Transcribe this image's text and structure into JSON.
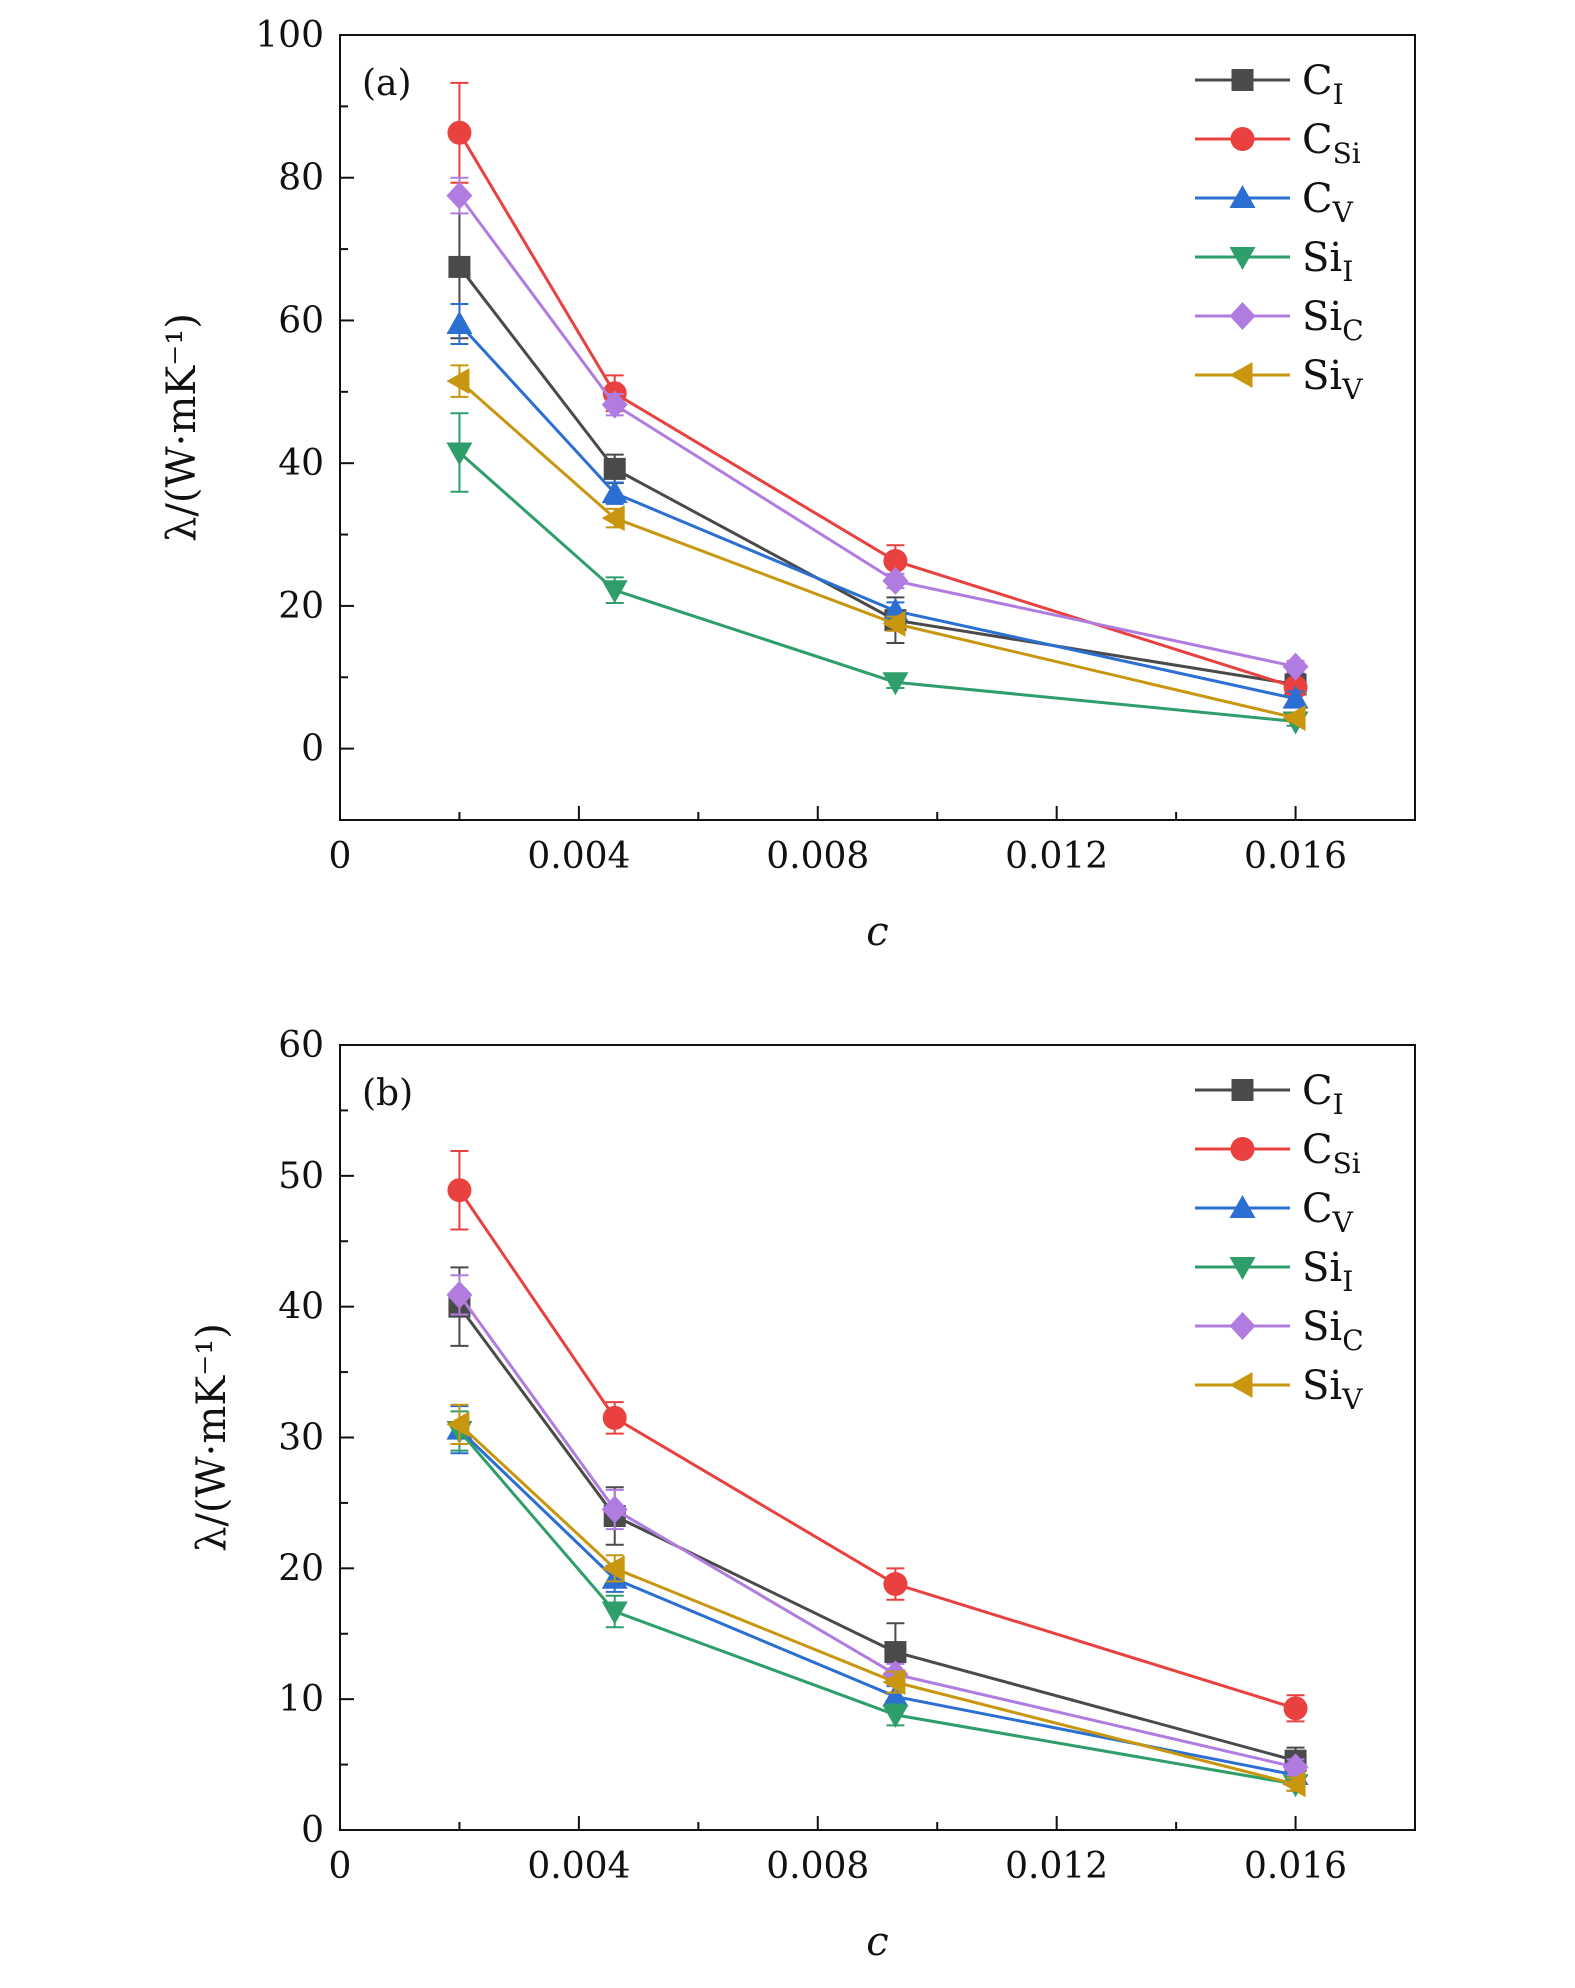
{
  "chart_data": [
    {
      "type": "line",
      "panel_label": "(a)",
      "xlabel": "c",
      "ylabel": "λ/(W·mK⁻¹)",
      "xlim": [
        0,
        0.018
      ],
      "ylim": [
        -10,
        100
      ],
      "xticks": [
        0,
        0.004,
        0.008,
        0.012,
        0.016
      ],
      "xtick_labels": [
        "0",
        "0.004",
        "0.008",
        "0.012",
        "0.016"
      ],
      "yticks": [
        0,
        20,
        40,
        60,
        80,
        100
      ],
      "ytick_labels": [
        "0",
        "20",
        "40",
        "60",
        "80",
        "100"
      ],
      "legend_position": "top-right",
      "x": [
        0.002,
        0.0046,
        0.0093,
        0.016
      ],
      "series": [
        {
          "name": "C",
          "sub": "I",
          "color": "#4a4a4a",
          "marker": "square",
          "values": [
            67.5,
            39.2,
            18,
            9
          ],
          "errors": [
            10,
            2,
            3.2,
            1.5
          ]
        },
        {
          "name": "C",
          "sub": "Si",
          "color": "#e8413f",
          "marker": "circle",
          "values": [
            86.3,
            49.8,
            26.3,
            8.6
          ],
          "errors": [
            7,
            2.5,
            2.2,
            1
          ]
        },
        {
          "name": "C",
          "sub": "V",
          "color": "#2a6fd1",
          "marker": "triangle-up",
          "values": [
            59.5,
            35.8,
            19.3,
            7
          ],
          "errors": [
            2.8,
            1.5,
            1.2,
            1
          ]
        },
        {
          "name": "Si",
          "sub": "I",
          "color": "#2e9e6a",
          "marker": "triangle-down",
          "values": [
            41.5,
            22.2,
            9.3,
            3.8
          ],
          "errors": [
            5.5,
            1.8,
            0.8,
            0.6
          ]
        },
        {
          "name": "Si",
          "sub": "C",
          "color": "#b17ce0",
          "marker": "diamond",
          "values": [
            77.5,
            48.2,
            23.5,
            11.5
          ],
          "errors": [
            2.5,
            1.5,
            1,
            0.8
          ]
        },
        {
          "name": "Si",
          "sub": "V",
          "color": "#c8960f",
          "marker": "triangle-left",
          "values": [
            51.5,
            32.3,
            17.5,
            4.3
          ],
          "errors": [
            2.2,
            1.3,
            1,
            0.5
          ]
        }
      ]
    },
    {
      "type": "line",
      "panel_label": "(b)",
      "xlabel": "c",
      "ylabel": "λ/(W·mK⁻¹)",
      "xlim": [
        0,
        0.018
      ],
      "ylim": [
        0,
        60
      ],
      "xticks": [
        0,
        0.004,
        0.008,
        0.012,
        0.016
      ],
      "xtick_labels": [
        "0",
        "0.004",
        "0.008",
        "0.012",
        "0.016"
      ],
      "yticks": [
        0,
        10,
        20,
        30,
        40,
        50,
        60
      ],
      "ytick_labels": [
        "0",
        "10",
        "20",
        "30",
        "40",
        "50",
        "60"
      ],
      "legend_position": "top-right",
      "x": [
        0.002,
        0.0046,
        0.0093,
        0.016
      ],
      "series": [
        {
          "name": "C",
          "sub": "I",
          "color": "#4a4a4a",
          "marker": "square",
          "values": [
            40,
            24,
            13.6,
            5.3
          ],
          "errors": [
            3,
            2.2,
            2.2,
            1
          ]
        },
        {
          "name": "C",
          "sub": "Si",
          "color": "#e8413f",
          "marker": "circle",
          "values": [
            48.9,
            31.5,
            18.8,
            9.3
          ],
          "errors": [
            3,
            1.2,
            1.2,
            1
          ]
        },
        {
          "name": "C",
          "sub": "V",
          "color": "#2a6fd1",
          "marker": "triangle-up",
          "values": [
            30.6,
            19.2,
            10.2,
            4.2
          ],
          "errors": [
            1.8,
            1,
            0.8,
            0.6
          ]
        },
        {
          "name": "Si",
          "sub": "I",
          "color": "#2e9e6a",
          "marker": "triangle-down",
          "values": [
            30.5,
            16.7,
            8.8,
            3.5
          ],
          "errors": [
            1.5,
            1.2,
            0.8,
            0.5
          ]
        },
        {
          "name": "Si",
          "sub": "C",
          "color": "#b17ce0",
          "marker": "diamond",
          "values": [
            40.9,
            24.5,
            11.9,
            4.8
          ],
          "errors": [
            1.5,
            1.5,
            0.8,
            0.6
          ]
        },
        {
          "name": "Si",
          "sub": "V",
          "color": "#c8960f",
          "marker": "triangle-left",
          "values": [
            31,
            20,
            11.3,
            3.5
          ],
          "errors": [
            1.5,
            1,
            0.8,
            0.5
          ]
        }
      ]
    }
  ]
}
